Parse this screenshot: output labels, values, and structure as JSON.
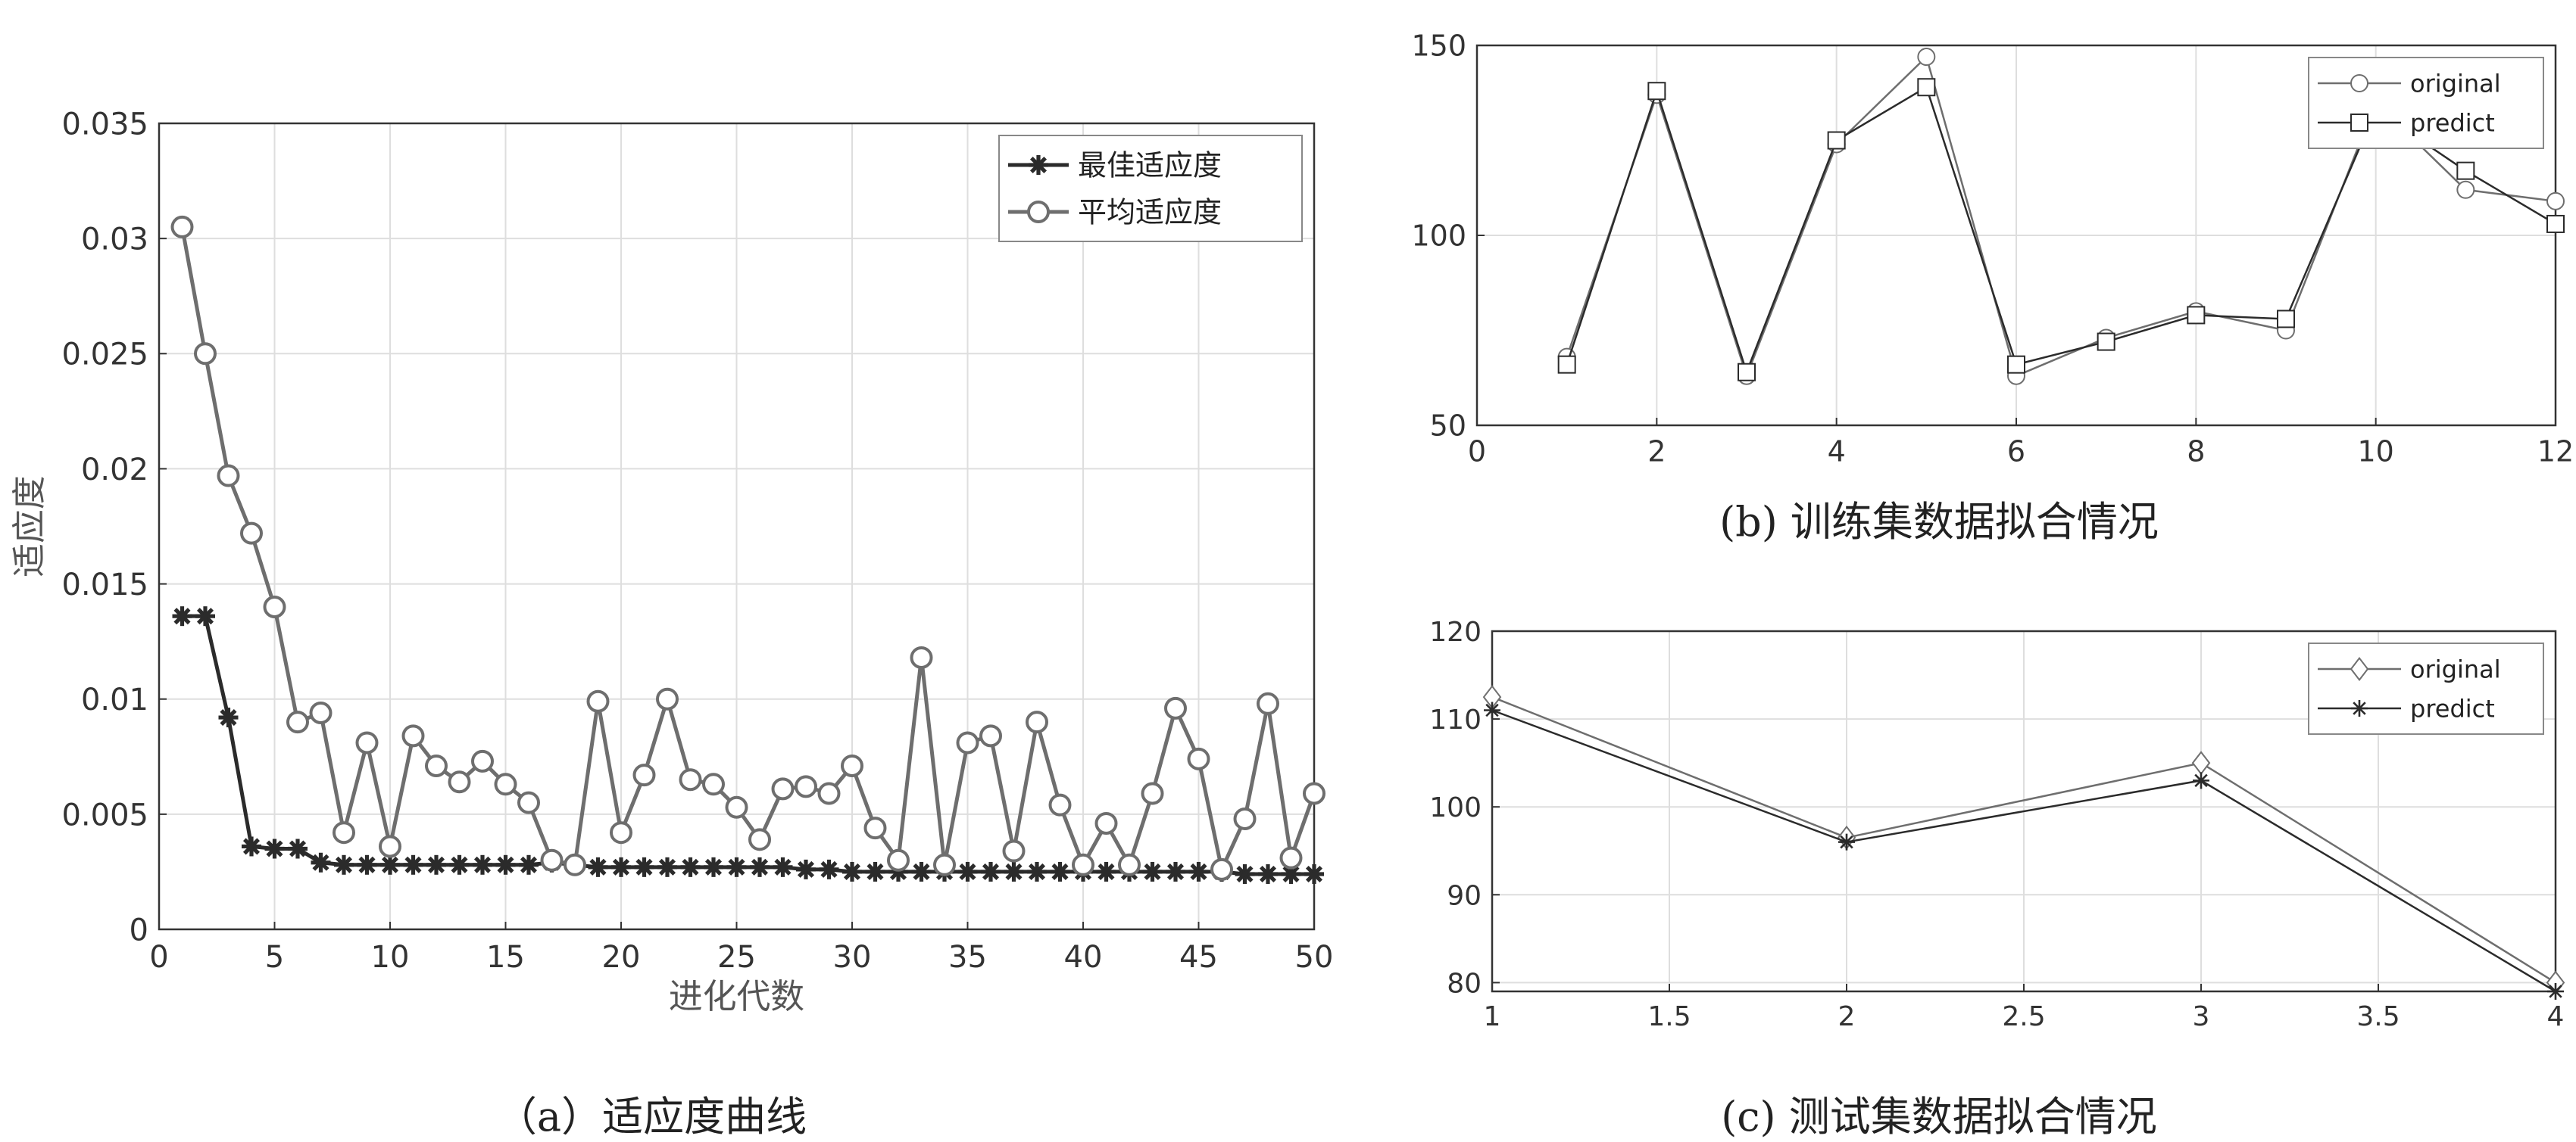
{
  "figure": {
    "caption_a": "（a）适应度曲线",
    "caption_b": "(b) 训练集数据拟合情况",
    "caption_c": "(c) 测试集数据拟合情况"
  },
  "colors": {
    "dark": "#2b2b2b",
    "mid": "#6e6e6e",
    "grid": "#dedede",
    "axis": "#333333",
    "label": "#555555"
  },
  "chart_data": [
    {
      "id": "a",
      "type": "line",
      "title": "",
      "xlabel": "进化代数",
      "ylabel": "适应度",
      "xlim": [
        0,
        50
      ],
      "ylim": [
        0,
        0.035
      ],
      "xticks": [
        0,
        5,
        10,
        15,
        20,
        25,
        30,
        35,
        40,
        45,
        50
      ],
      "xtick_labels": [
        "0",
        "5",
        "10",
        "15",
        "20",
        "25",
        "30",
        "35",
        "40",
        "45",
        "50"
      ],
      "yticks": [
        0,
        0.005,
        0.01,
        0.015,
        0.02,
        0.025,
        0.03,
        0.035
      ],
      "ytick_labels": [
        "0",
        "0.005",
        "0.01",
        "0.015",
        "0.02",
        "0.025",
        "0.03",
        "0.035"
      ],
      "grid": true,
      "legend_position": "top-right",
      "x": [
        1,
        2,
        3,
        4,
        5,
        6,
        7,
        8,
        9,
        10,
        11,
        12,
        13,
        14,
        15,
        16,
        17,
        18,
        19,
        20,
        21,
        22,
        23,
        24,
        25,
        26,
        27,
        28,
        29,
        30,
        31,
        32,
        33,
        34,
        35,
        36,
        37,
        38,
        39,
        40,
        41,
        42,
        43,
        44,
        45,
        46,
        47,
        48,
        49,
        50
      ],
      "series": [
        {
          "name": "最佳适应度",
          "marker": "asterisk",
          "color": "#2b2b2b",
          "values": [
            0.0136,
            0.0136,
            0.0092,
            0.0036,
            0.0035,
            0.0035,
            0.0029,
            0.0028,
            0.0028,
            0.0028,
            0.0028,
            0.0028,
            0.0028,
            0.0028,
            0.0028,
            0.0028,
            0.0029,
            0.0028,
            0.0027,
            0.0027,
            0.0027,
            0.0027,
            0.0027,
            0.0027,
            0.0027,
            0.0027,
            0.0027,
            0.0026,
            0.0026,
            0.0025,
            0.0025,
            0.0025,
            0.0025,
            0.0025,
            0.0025,
            0.0025,
            0.0025,
            0.0025,
            0.0025,
            0.0025,
            0.0025,
            0.0025,
            0.0025,
            0.0025,
            0.0025,
            0.0025,
            0.0024,
            0.0024,
            0.0024,
            0.0024
          ]
        },
        {
          "name": "平均适应度",
          "marker": "circle",
          "color": "#6e6e6e",
          "values": [
            0.0305,
            0.025,
            0.0197,
            0.0172,
            0.014,
            0.009,
            0.0094,
            0.0042,
            0.0081,
            0.0036,
            0.0084,
            0.0071,
            0.0064,
            0.0073,
            0.0063,
            0.0055,
            0.003,
            0.0028,
            0.0099,
            0.0042,
            0.0067,
            0.01,
            0.0065,
            0.0063,
            0.0053,
            0.0039,
            0.0061,
            0.0062,
            0.0059,
            0.0071,
            0.0044,
            0.003,
            0.0118,
            0.0028,
            0.0081,
            0.0084,
            0.0034,
            0.009,
            0.0054,
            0.0028,
            0.0046,
            0.0028,
            0.0059,
            0.0096,
            0.0074,
            0.0026,
            0.0048,
            0.0098,
            0.0031,
            0.0059
          ]
        }
      ]
    },
    {
      "id": "b",
      "type": "line",
      "title": "",
      "xlabel": "",
      "ylabel": "",
      "xlim": [
        0,
        12
      ],
      "ylim": [
        50,
        150
      ],
      "xticks": [
        0,
        2,
        4,
        6,
        8,
        10,
        12
      ],
      "xtick_labels": [
        "0",
        "2",
        "4",
        "6",
        "8",
        "10",
        "12"
      ],
      "yticks": [
        50,
        100,
        150
      ],
      "ytick_labels": [
        "50",
        "100",
        "150"
      ],
      "grid": true,
      "legend_position": "top-right",
      "x": [
        1,
        2,
        3,
        4,
        5,
        6,
        7,
        8,
        9,
        10,
        11,
        12
      ],
      "series": [
        {
          "name": "original",
          "marker": "circle",
          "color": "#6e6e6e",
          "values": [
            68,
            137,
            63,
            124,
            147,
            63,
            73,
            80,
            75,
            135,
            112,
            109
          ]
        },
        {
          "name": "predict",
          "marker": "square",
          "color": "#2b2b2b",
          "values": [
            66,
            138,
            64,
            125,
            139,
            66,
            72,
            79,
            78,
            133,
            117,
            103
          ]
        }
      ]
    },
    {
      "id": "c",
      "type": "line",
      "title": "",
      "xlabel": "",
      "ylabel": "",
      "xlim": [
        1,
        4
      ],
      "ylim": [
        79,
        120
      ],
      "xticks": [
        1,
        1.5,
        2,
        2.5,
        3,
        3.5,
        4
      ],
      "xtick_labels": [
        "1",
        "1.5",
        "2",
        "2.5",
        "3",
        "3.5",
        "4"
      ],
      "yticks": [
        80,
        90,
        100,
        110,
        120
      ],
      "ytick_labels": [
        "80",
        "90",
        "100",
        "110",
        "120"
      ],
      "grid": true,
      "legend_position": "top-right",
      "x": [
        1,
        2,
        3,
        4
      ],
      "series": [
        {
          "name": "original",
          "marker": "diamond",
          "color": "#6e6e6e",
          "values": [
            112.5,
            96.5,
            105,
            80
          ]
        },
        {
          "name": "predict",
          "marker": "asterisk",
          "color": "#2b2b2b",
          "values": [
            111,
            96,
            103,
            79
          ]
        }
      ]
    }
  ]
}
